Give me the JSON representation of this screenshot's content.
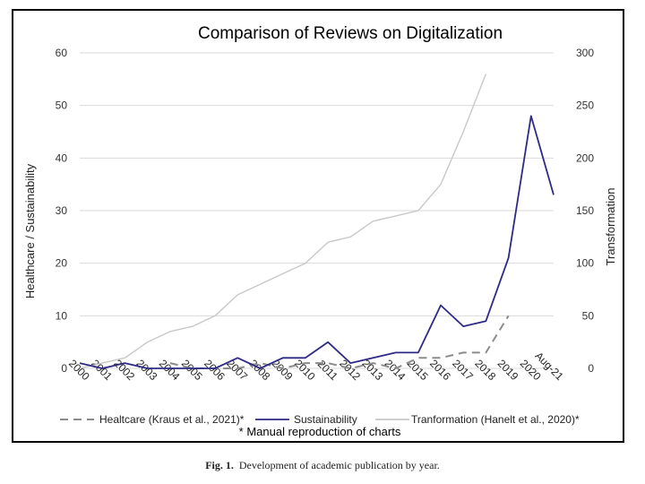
{
  "chart_data": {
    "type": "line",
    "title": "Comparison of Reviews on Digitalization",
    "ylabel_left": "Healthcare / Sustainability",
    "ylabel_right": "Transformation",
    "xlabel": "",
    "categories": [
      "2000",
      "2001",
      "2002",
      "2003",
      "2004",
      "2005",
      "2006",
      "2007",
      "2008",
      "2009",
      "2010",
      "2011",
      "2012",
      "2013",
      "2014",
      "2015",
      "2016",
      "2017",
      "2018",
      "2019",
      "2020",
      "Aug-21"
    ],
    "ylim_left": [
      0,
      60
    ],
    "ylim_right": [
      0,
      300
    ],
    "yticks_left": [
      "0",
      "10",
      "20",
      "30",
      "40",
      "50",
      "60"
    ],
    "yticks_right": [
      "0",
      "50",
      "100",
      "150",
      "200",
      "250",
      "300"
    ],
    "grid": "horizontal",
    "legend_position": "bottom",
    "series": [
      {
        "name": "Healtcare (Kraus et al., 2021)*",
        "axis": "left",
        "style": "dashed",
        "color": "#8c8c8c",
        "values": [
          null,
          null,
          null,
          null,
          1,
          0,
          0,
          0,
          1,
          0,
          1,
          1,
          0,
          1,
          0,
          2,
          2,
          3,
          3,
          10,
          null,
          null
        ]
      },
      {
        "name": "Sustainability",
        "axis": "left",
        "style": "solid",
        "color": "#2e2a85",
        "values": [
          1,
          0,
          1,
          0,
          0,
          0,
          0,
          2,
          0,
          2,
          2,
          5,
          1,
          2,
          3,
          3,
          12,
          8,
          9,
          21,
          48,
          33
        ]
      },
      {
        "name": "Tranformation (Hanelt et al., 2020)*",
        "axis": "right",
        "style": "solid",
        "color": "#c8c8c8",
        "values": [
          0,
          5,
          10,
          25,
          35,
          40,
          50,
          70,
          80,
          90,
          100,
          120,
          125,
          140,
          145,
          150,
          175,
          225,
          280,
          null,
          null,
          null
        ]
      }
    ],
    "footnote": "* Manual reproduction of charts"
  },
  "caption": {
    "label": "Fig. 1.",
    "text": "Development of academic publication by year."
  }
}
